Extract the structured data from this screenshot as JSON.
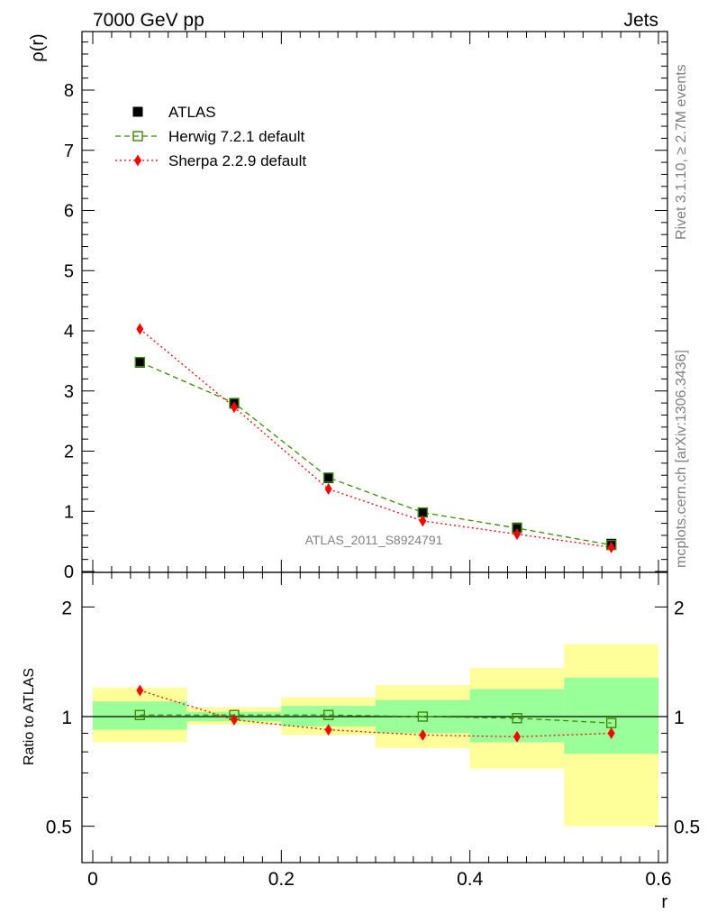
{
  "header": {
    "left": "7000 GeV pp",
    "right": "Jets"
  },
  "side_labels": {
    "rivet": "Rivet 3.1.10, ≥ 2.7M events",
    "mcplots": "mcplots.cern.ch [arXiv:1306.3436]"
  },
  "watermark": "ATLAS_2011_S8924791",
  "chart_data": [
    {
      "type": "line",
      "panel": "main",
      "ylabel": "ρ(r)",
      "xlim": [
        0,
        0.6
      ],
      "ylim": [
        0,
        9
      ],
      "yticks": [
        "0",
        "1",
        "2",
        "3",
        "4",
        "5",
        "6",
        "7",
        "8"
      ],
      "x": [
        0.05,
        0.15,
        0.25,
        0.35,
        0.45,
        0.55
      ],
      "series": [
        {
          "name": "ATLAS",
          "values": [
            3.47,
            2.79,
            1.55,
            0.98,
            0.73,
            0.46
          ],
          "color": "#000000",
          "marker": "filled-square"
        },
        {
          "name": "Herwig 7.2.1 default",
          "values": [
            3.48,
            2.8,
            1.56,
            0.98,
            0.72,
            0.44
          ],
          "color": "#3a8a00",
          "marker": "open-square",
          "dash": "dashed"
        },
        {
          "name": "Sherpa 2.2.9 default",
          "values": [
            4.03,
            2.73,
            1.37,
            0.84,
            0.62,
            0.4
          ],
          "color": "#ff0000",
          "marker": "diamond",
          "dash": "dotted"
        }
      ],
      "legend": "top-left"
    },
    {
      "type": "line",
      "panel": "ratio",
      "ylabel": "Ratio to ATLAS",
      "xlabel": "r",
      "xlim": [
        0,
        0.6
      ],
      "ylim": [
        0.4,
        2.3
      ],
      "yscale": "log",
      "xticks": [
        "0",
        "0.2",
        "0.4",
        "0.6"
      ],
      "yticks": [
        "0.5",
        "1",
        "2"
      ],
      "x": [
        0.05,
        0.15,
        0.25,
        0.35,
        0.45,
        0.55
      ],
      "bands": [
        {
          "name": "total",
          "color": "#ffff99",
          "low": [
            0.85,
            0.95,
            0.89,
            0.82,
            0.72,
            0.5
          ],
          "high": [
            1.2,
            1.06,
            1.13,
            1.22,
            1.36,
            1.58
          ]
        },
        {
          "name": "stat",
          "color": "#99ff99",
          "low": [
            0.92,
            0.97,
            0.94,
            0.9,
            0.85,
            0.79
          ],
          "high": [
            1.1,
            1.03,
            1.07,
            1.11,
            1.19,
            1.28
          ]
        }
      ],
      "series": [
        {
          "name": "Herwig 7.2.1 default",
          "values": [
            1.01,
            1.01,
            1.01,
            1.0,
            0.99,
            0.96
          ],
          "color": "#3a8a00",
          "marker": "open-square",
          "dash": "dashed"
        },
        {
          "name": "Sherpa 2.2.9 default",
          "values": [
            1.18,
            0.98,
            0.92,
            0.89,
            0.88,
            0.9
          ],
          "color": "#ff0000",
          "marker": "diamond",
          "dash": "dotted"
        }
      ]
    }
  ]
}
